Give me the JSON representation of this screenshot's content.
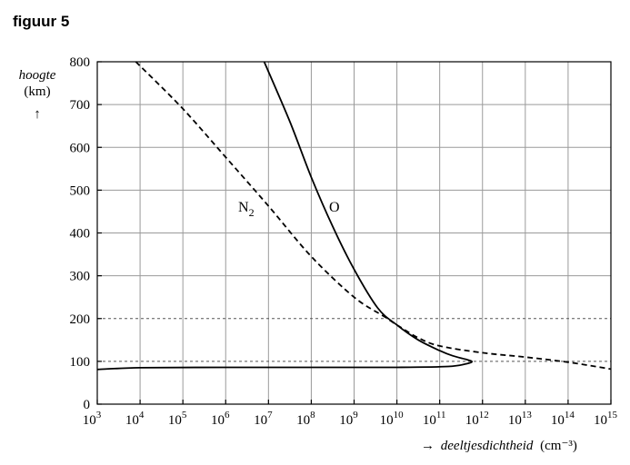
{
  "figure_title": "figuur 5",
  "chart_data": {
    "type": "line",
    "title": "",
    "xlabel": {
      "arrow": "→",
      "text": "deeltjesdichtheid",
      "unit": "(cm⁻³)"
    },
    "ylabel": {
      "text": "hoogte",
      "unit": "(km)",
      "arrow": "↑"
    },
    "x_scale": "log",
    "x_ticks": [
      {
        "value": 3,
        "label": "10",
        "exp": "3"
      },
      {
        "value": 4,
        "label": "10",
        "exp": "4"
      },
      {
        "value": 5,
        "label": "10",
        "exp": "5"
      },
      {
        "value": 6,
        "label": "10",
        "exp": "6"
      },
      {
        "value": 7,
        "label": "10",
        "exp": "7"
      },
      {
        "value": 8,
        "label": "10",
        "exp": "8"
      },
      {
        "value": 9,
        "label": "10",
        "exp": "9"
      },
      {
        "value": 10,
        "label": "10",
        "exp": "10"
      },
      {
        "value": 11,
        "label": "10",
        "exp": "11"
      },
      {
        "value": 12,
        "label": "10",
        "exp": "12"
      },
      {
        "value": 13,
        "label": "10",
        "exp": "13"
      },
      {
        "value": 14,
        "label": "10",
        "exp": "14"
      },
      {
        "value": 15,
        "label": "10",
        "exp": "15"
      }
    ],
    "xlim_exponent": [
      3,
      15
    ],
    "y_ticks": [
      "0",
      "100",
      "200",
      "300",
      "400",
      "500",
      "600",
      "700",
      "800"
    ],
    "ylim": [
      0,
      800
    ],
    "grid": true,
    "reference_lines": [
      {
        "y": 100,
        "style": "dashed"
      },
      {
        "y": 200,
        "style": "dashed"
      }
    ],
    "series": [
      {
        "name": "N",
        "name_subscript": "2",
        "line_style": "dashed",
        "points": [
          [
            3.9,
            800
          ],
          [
            5.0,
            690
          ],
          [
            6.0,
            577
          ],
          [
            7.0,
            463
          ],
          [
            8.0,
            345
          ],
          [
            9.0,
            250
          ],
          [
            9.7,
            205
          ],
          [
            10.0,
            185
          ],
          [
            10.5,
            155
          ],
          [
            11.0,
            136
          ],
          [
            12.0,
            120
          ],
          [
            13.0,
            110
          ],
          [
            14.0,
            98
          ],
          [
            15.0,
            82
          ]
        ]
      },
      {
        "name": "O",
        "line_style": "solid",
        "points": [
          [
            6.9,
            800
          ],
          [
            7.5,
            660
          ],
          [
            8.0,
            530
          ],
          [
            8.5,
            415
          ],
          [
            9.0,
            315
          ],
          [
            9.55,
            225
          ],
          [
            10.0,
            185
          ],
          [
            10.5,
            150
          ],
          [
            11.0,
            125
          ],
          [
            11.3,
            113
          ],
          [
            11.6,
            105
          ],
          [
            11.75,
            100
          ],
          [
            11.65,
            95
          ],
          [
            11.2,
            88
          ],
          [
            10.0,
            86
          ],
          [
            8.0,
            86
          ],
          [
            6.0,
            86
          ],
          [
            4.0,
            85
          ],
          [
            3.0,
            81
          ]
        ]
      }
    ]
  }
}
